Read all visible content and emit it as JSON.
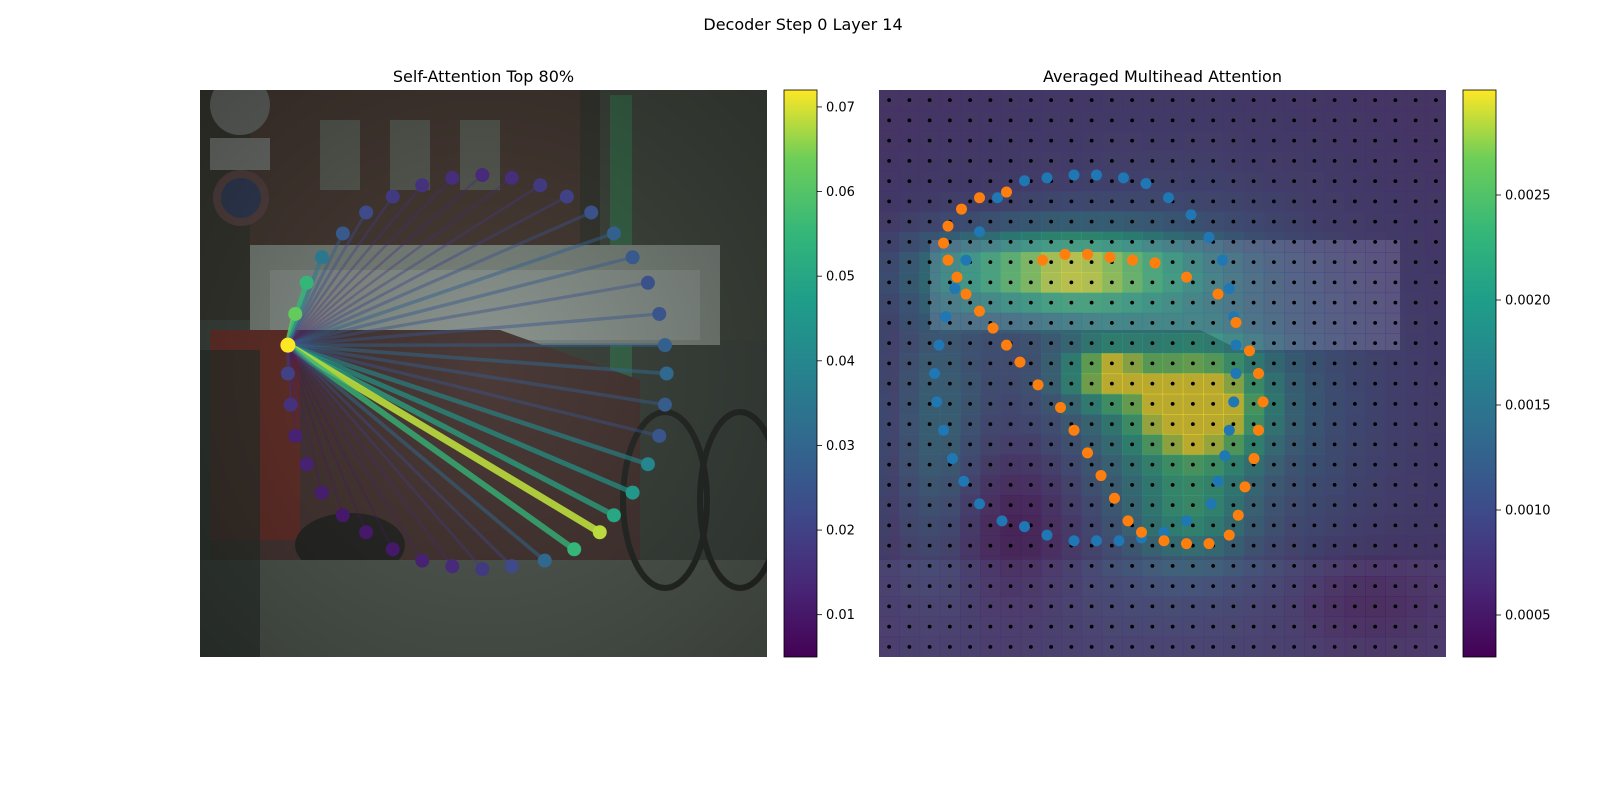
{
  "figure": {
    "suptitle": "Decoder Step 0 Layer 14"
  },
  "chart_data": [
    {
      "type": "scatter",
      "title": "Self-Attention Top 80%",
      "subtype": "attention-graph over image",
      "colormap": "viridis",
      "colorbar": {
        "range": [
          0.005,
          0.072
        ],
        "ticks": [
          "0.01",
          "0.02",
          "0.03",
          "0.04",
          "0.05",
          "0.06",
          "0.07"
        ]
      },
      "query_point": [
        0.155,
        0.45
      ],
      "points": [
        {
          "x": 0.155,
          "y": 0.45,
          "v": 0.072
        },
        {
          "x": 0.168,
          "y": 0.395,
          "v": 0.062
        },
        {
          "x": 0.188,
          "y": 0.34,
          "v": 0.055
        },
        {
          "x": 0.215,
          "y": 0.295,
          "v": 0.035
        },
        {
          "x": 0.252,
          "y": 0.253,
          "v": 0.026
        },
        {
          "x": 0.293,
          "y": 0.216,
          "v": 0.022
        },
        {
          "x": 0.34,
          "y": 0.188,
          "v": 0.018
        },
        {
          "x": 0.392,
          "y": 0.168,
          "v": 0.016
        },
        {
          "x": 0.445,
          "y": 0.155,
          "v": 0.015
        },
        {
          "x": 0.498,
          "y": 0.15,
          "v": 0.014
        },
        {
          "x": 0.55,
          "y": 0.155,
          "v": 0.015
        },
        {
          "x": 0.6,
          "y": 0.168,
          "v": 0.018
        },
        {
          "x": 0.647,
          "y": 0.188,
          "v": 0.02
        },
        {
          "x": 0.69,
          "y": 0.216,
          "v": 0.024
        },
        {
          "x": 0.73,
          "y": 0.253,
          "v": 0.028
        },
        {
          "x": 0.763,
          "y": 0.295,
          "v": 0.026
        },
        {
          "x": 0.79,
          "y": 0.34,
          "v": 0.024
        },
        {
          "x": 0.81,
          "y": 0.395,
          "v": 0.025
        },
        {
          "x": 0.82,
          "y": 0.45,
          "v": 0.028
        },
        {
          "x": 0.823,
          "y": 0.5,
          "v": 0.03
        },
        {
          "x": 0.82,
          "y": 0.555,
          "v": 0.027
        },
        {
          "x": 0.81,
          "y": 0.61,
          "v": 0.025
        },
        {
          "x": 0.79,
          "y": 0.66,
          "v": 0.04
        },
        {
          "x": 0.763,
          "y": 0.71,
          "v": 0.045
        },
        {
          "x": 0.73,
          "y": 0.75,
          "v": 0.05
        },
        {
          "x": 0.705,
          "y": 0.78,
          "v": 0.068
        },
        {
          "x": 0.66,
          "y": 0.81,
          "v": 0.055
        },
        {
          "x": 0.608,
          "y": 0.83,
          "v": 0.03
        },
        {
          "x": 0.55,
          "y": 0.84,
          "v": 0.022
        },
        {
          "x": 0.498,
          "y": 0.845,
          "v": 0.018
        },
        {
          "x": 0.445,
          "y": 0.84,
          "v": 0.014
        },
        {
          "x": 0.392,
          "y": 0.83,
          "v": 0.012
        },
        {
          "x": 0.34,
          "y": 0.81,
          "v": 0.01
        },
        {
          "x": 0.293,
          "y": 0.78,
          "v": 0.01
        },
        {
          "x": 0.252,
          "y": 0.75,
          "v": 0.01
        },
        {
          "x": 0.215,
          "y": 0.71,
          "v": 0.011
        },
        {
          "x": 0.188,
          "y": 0.66,
          "v": 0.012
        },
        {
          "x": 0.168,
          "y": 0.61,
          "v": 0.012
        },
        {
          "x": 0.16,
          "y": 0.555,
          "v": 0.016
        },
        {
          "x": 0.155,
          "y": 0.5,
          "v": 0.02
        }
      ]
    },
    {
      "type": "heatmap",
      "title": "Averaged Multihead Attention",
      "colormap": "viridis",
      "colorbar": {
        "range": [
          0.0003,
          0.003
        ],
        "ticks": [
          "0.0005",
          "0.0010",
          "0.0015",
          "0.0020",
          "0.0025"
        ]
      },
      "grid": {
        "rows": 28,
        "cols": 28
      },
      "blue_points": [
        [
          0.13,
          0.19
        ],
        [
          0.19,
          0.16
        ],
        [
          0.24,
          0.155
        ],
        [
          0.3,
          0.15
        ],
        [
          0.35,
          0.15
        ],
        [
          0.41,
          0.155
        ],
        [
          0.46,
          0.165
        ],
        [
          0.51,
          0.19
        ],
        [
          0.56,
          0.22
        ],
        [
          0.6,
          0.26
        ],
        [
          0.63,
          0.3
        ],
        [
          0.645,
          0.35
        ],
        [
          0.655,
          0.4
        ],
        [
          0.66,
          0.45
        ],
        [
          0.66,
          0.5
        ],
        [
          0.655,
          0.55
        ],
        [
          0.645,
          0.6
        ],
        [
          0.635,
          0.645
        ],
        [
          0.62,
          0.69
        ],
        [
          0.605,
          0.73
        ],
        [
          0.55,
          0.76
        ],
        [
          0.5,
          0.78
        ],
        [
          0.45,
          0.79
        ],
        [
          0.4,
          0.795
        ],
        [
          0.35,
          0.795
        ],
        [
          0.3,
          0.795
        ],
        [
          0.24,
          0.785
        ],
        [
          0.19,
          0.77
        ],
        [
          0.14,
          0.76
        ],
        [
          0.09,
          0.73
        ],
        [
          0.055,
          0.69
        ],
        [
          0.03,
          0.65
        ],
        [
          0.01,
          0.6
        ],
        [
          -0.005,
          0.55
        ],
        [
          -0.01,
          0.5
        ],
        [
          0.0,
          0.45
        ],
        [
          0.015,
          0.4
        ],
        [
          0.035,
          0.35
        ],
        [
          0.06,
          0.3
        ],
        [
          0.09,
          0.25
        ]
      ],
      "orange_points": [
        [
          0.23,
          0.3
        ],
        [
          0.28,
          0.29
        ],
        [
          0.33,
          0.29
        ],
        [
          0.38,
          0.295
        ],
        [
          0.43,
          0.3
        ],
        [
          0.48,
          0.305
        ],
        [
          0.55,
          0.33
        ],
        [
          0.62,
          0.36
        ],
        [
          0.66,
          0.41
        ],
        [
          0.69,
          0.46
        ],
        [
          0.71,
          0.5
        ],
        [
          0.72,
          0.55
        ],
        [
          0.71,
          0.6
        ],
        [
          0.7,
          0.65
        ],
        [
          0.68,
          0.7
        ],
        [
          0.665,
          0.75
        ],
        [
          0.645,
          0.785
        ],
        [
          0.6,
          0.8
        ],
        [
          0.55,
          0.8
        ],
        [
          0.5,
          0.795
        ],
        [
          0.45,
          0.78
        ],
        [
          0.42,
          0.76
        ],
        [
          0.39,
          0.72
        ],
        [
          0.36,
          0.68
        ],
        [
          0.33,
          0.64
        ],
        [
          0.3,
          0.6
        ],
        [
          0.27,
          0.56
        ],
        [
          0.22,
          0.52
        ],
        [
          0.18,
          0.48
        ],
        [
          0.15,
          0.45
        ],
        [
          0.12,
          0.42
        ],
        [
          0.09,
          0.39
        ],
        [
          0.06,
          0.36
        ],
        [
          0.04,
          0.33
        ],
        [
          0.02,
          0.3
        ],
        [
          0.01,
          0.27
        ],
        [
          0.02,
          0.24
        ],
        [
          0.05,
          0.21
        ],
        [
          0.09,
          0.19
        ],
        [
          0.15,
          0.18
        ]
      ]
    }
  ]
}
